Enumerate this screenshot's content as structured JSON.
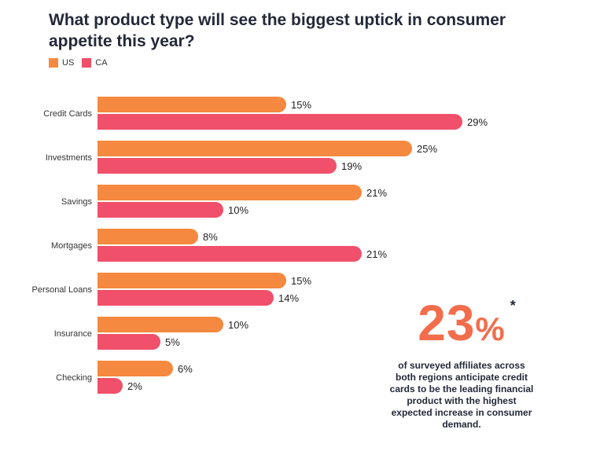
{
  "chart_data": {
    "type": "bar",
    "orientation": "horizontal",
    "title": "What product type will see the biggest uptick in consumer appetite this year?",
    "categories": [
      "Credit Cards",
      "Investments",
      "Savings",
      "Mortgages",
      "Personal Loans",
      "Insurance",
      "Checking"
    ],
    "series": [
      {
        "name": "US",
        "color": "#f5893f",
        "values": [
          15,
          25,
          21,
          8,
          15,
          10,
          6
        ],
        "labels": [
          "15%",
          "25%",
          "21%",
          "8%",
          "15%",
          "10%",
          "6%"
        ]
      },
      {
        "name": "CA",
        "color": "#f0506a",
        "values": [
          29,
          19,
          10,
          21,
          14,
          5,
          2
        ],
        "labels": [
          "29%",
          "19%",
          "10%",
          "21%",
          "14%",
          "5%",
          "2%"
        ]
      }
    ],
    "xlim": [
      0,
      30
    ],
    "unit": "%",
    "legend_position": "top-left"
  },
  "callout": {
    "number": "23",
    "percent_sign": "%",
    "asterisk": "*",
    "color": "#f26d4b",
    "text": "of surveyed affiliates across both regions anticipate credit cards to be the leading financial product with the highest expected increase in consumer demand."
  }
}
